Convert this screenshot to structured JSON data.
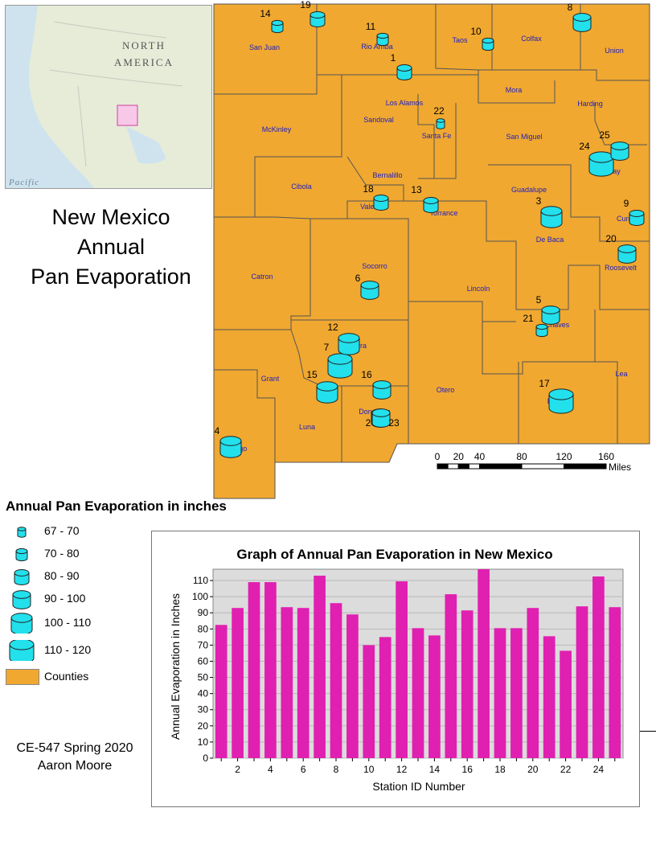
{
  "title": {
    "line1": "New Mexico",
    "line2": "Annual",
    "line3": "Pan Evaporation"
  },
  "inset": {
    "label_north": "NORTH",
    "label_america": "AMERICA",
    "label_pacific": "Pacific"
  },
  "colors": {
    "county_fill": "#f0a830",
    "county_border": "#555555",
    "station_fill": "#22e0ec",
    "bar_fill": "#e020b0",
    "plot_bg": "#dcdcdc",
    "label_blue": "#2020c0"
  },
  "counties": [
    {
      "name": "San Juan"
    },
    {
      "name": "Rio Arriba"
    },
    {
      "name": "Taos"
    },
    {
      "name": "Colfax"
    },
    {
      "name": "Union"
    },
    {
      "name": "Mora"
    },
    {
      "name": "Harding"
    },
    {
      "name": "Los Alamos"
    },
    {
      "name": "Sandoval"
    },
    {
      "name": "Santa Fe"
    },
    {
      "name": "San Miguel"
    },
    {
      "name": "McKinley"
    },
    {
      "name": "Quay"
    },
    {
      "name": "Bernalillo"
    },
    {
      "name": "Cibola"
    },
    {
      "name": "Guadalupe"
    },
    {
      "name": "Valencia"
    },
    {
      "name": "Torrance"
    },
    {
      "name": "Curry"
    },
    {
      "name": "De Baca"
    },
    {
      "name": "Roosevelt"
    },
    {
      "name": "Socorro"
    },
    {
      "name": "Catron"
    },
    {
      "name": "Lincoln"
    },
    {
      "name": "Chaves"
    },
    {
      "name": "Sierra"
    },
    {
      "name": "Grant"
    },
    {
      "name": "Otero"
    },
    {
      "name": "Lea"
    },
    {
      "name": "Dona Ana"
    },
    {
      "name": "Eddy"
    },
    {
      "name": "Luna"
    },
    {
      "name": "Hidalgo"
    }
  ],
  "stations": [
    {
      "id": "1",
      "evap": 82.5
    },
    {
      "id": "2",
      "evap": 93.0
    },
    {
      "id": "3",
      "evap": 109.0
    },
    {
      "id": "4",
      "evap": 109.0
    },
    {
      "id": "5",
      "evap": 93.5
    },
    {
      "id": "6",
      "evap": 93.0
    },
    {
      "id": "7",
      "evap": 113.0
    },
    {
      "id": "8",
      "evap": 96.0
    },
    {
      "id": "9",
      "evap": 89.0
    },
    {
      "id": "10",
      "evap": 70.0
    },
    {
      "id": "11",
      "evap": 75.0
    },
    {
      "id": "12",
      "evap": 109.5
    },
    {
      "id": "13",
      "evap": 80.5
    },
    {
      "id": "14",
      "evap": 76.0
    },
    {
      "id": "15",
      "evap": 101.5
    },
    {
      "id": "16",
      "evap": 91.5
    },
    {
      "id": "17",
      "evap": 117.0
    },
    {
      "id": "18",
      "evap": 80.5
    },
    {
      "id": "19",
      "evap": 80.5
    },
    {
      "id": "20",
      "evap": 93.0
    },
    {
      "id": "21",
      "evap": 75.5
    },
    {
      "id": "22",
      "evap": 66.5
    },
    {
      "id": "23",
      "evap": 94.0
    },
    {
      "id": "24",
      "evap": 112.5
    },
    {
      "id": "25",
      "evap": 93.5
    }
  ],
  "scalebar": {
    "ticks": [
      "0",
      "20",
      "40",
      "80",
      "120",
      "160"
    ],
    "unit": "Miles"
  },
  "legend": {
    "title": "Annual Pan Evaporation in inches",
    "items": [
      {
        "label": "67 - 70",
        "icon": "cylinder-xs"
      },
      {
        "label": "70 - 80",
        "icon": "cylinder-s"
      },
      {
        "label": "80 - 90",
        "icon": "cylinder-m"
      },
      {
        "label": "90 - 100",
        "icon": "cylinder-l"
      },
      {
        "label": "100 - 110",
        "icon": "cylinder-xl"
      },
      {
        "label": "110 - 120",
        "icon": "cylinder-xxl"
      }
    ],
    "counties_label": "Counties"
  },
  "credit": {
    "line1": "CE-547 Spring 2020",
    "line2": "Aaron Moore"
  },
  "chart_data": {
    "type": "bar",
    "title": "Graph of Annual Pan Evaporation in New Mexico",
    "xlabel": "Station ID Number",
    "ylabel": "Annual Evaporation in Inches",
    "ylim": [
      0,
      117
    ],
    "yticks": [
      0,
      10,
      20,
      30,
      40,
      50,
      60,
      70,
      80,
      90,
      100,
      110
    ],
    "xticks": [
      "2",
      "4",
      "6",
      "8",
      "10",
      "12",
      "14",
      "16",
      "18",
      "20",
      "22",
      "24"
    ],
    "categories": [
      "1",
      "2",
      "3",
      "4",
      "5",
      "6",
      "7",
      "8",
      "9",
      "10",
      "11",
      "12",
      "13",
      "14",
      "15",
      "16",
      "17",
      "18",
      "19",
      "20",
      "21",
      "22",
      "23",
      "24",
      "25"
    ],
    "values": [
      82.5,
      93.0,
      109.0,
      109.0,
      93.5,
      93.0,
      113.0,
      96.0,
      89.0,
      70.0,
      75.0,
      109.5,
      80.5,
      76.0,
      101.5,
      91.5,
      117.0,
      80.5,
      80.5,
      93.0,
      75.5,
      66.5,
      94.0,
      112.5,
      93.5
    ],
    "grid": true
  }
}
